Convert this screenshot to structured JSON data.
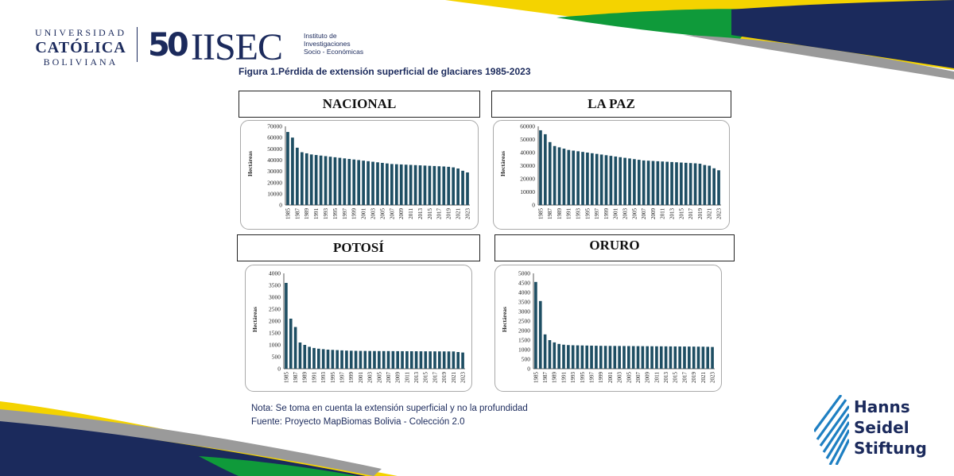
{
  "logos": {
    "ucb": {
      "line1": "UNIVERSIDAD",
      "line2": "CATÓLICA",
      "line3": "BOLIVIANA"
    },
    "usec": {
      "number": "50",
      "wordmark": "IISEC",
      "subtitle": [
        "Instituto de",
        "Investigaciones",
        "Socio - Económicas"
      ]
    },
    "hss": {
      "lines": [
        "Hanns",
        "Seidel",
        "Stiftung"
      ],
      "icon": "stripes-icon"
    }
  },
  "colors": {
    "navy": "#1b2a5c",
    "yellow": "#f4d300",
    "green": "#0f9a3a",
    "gray": "#9a9a9a",
    "bar": "#1e4e63"
  },
  "figure_title": "Figura 1.Pérdida de extensión superficial de glaciares 1985-2023",
  "notes": {
    "nota": "Nota: Se toma en cuenta la extensión superficial y no la profundidad",
    "fuente": "Fuente:  Proyecto MapBiomas Bolivia - Colección 2.0"
  },
  "chart_data": [
    {
      "type": "bar",
      "title": "NACIONAL",
      "ylabel": "Hectáreas",
      "ylim": [
        0,
        70000
      ],
      "yticks": [
        "0",
        "10000",
        "20000",
        "30000",
        "40000",
        "50000",
        "60000",
        "70000"
      ],
      "xticks": [
        "1985",
        "1987",
        "1989",
        "1991",
        "1993",
        "1995",
        "1997",
        "1999",
        "2001",
        "2003",
        "2005",
        "2007",
        "2009",
        "2011",
        "2013",
        "2015",
        "2017",
        "2019",
        "2021",
        "2023"
      ],
      "x": [
        1985,
        1986,
        1987,
        1988,
        1989,
        1990,
        1991,
        1992,
        1993,
        1994,
        1995,
        1996,
        1997,
        1998,
        1999,
        2000,
        2001,
        2002,
        2003,
        2004,
        2005,
        2006,
        2007,
        2008,
        2009,
        2010,
        2011,
        2012,
        2013,
        2014,
        2015,
        2016,
        2017,
        2018,
        2019,
        2020,
        2021,
        2022,
        2023
      ],
      "values": [
        65000,
        60000,
        51000,
        47000,
        46000,
        45000,
        44500,
        44000,
        43500,
        43000,
        42500,
        42000,
        41500,
        41000,
        40500,
        40000,
        39500,
        39000,
        38500,
        38000,
        37500,
        37000,
        36500,
        36300,
        36100,
        35900,
        35700,
        35500,
        35300,
        35100,
        34900,
        34700,
        34500,
        34300,
        34000,
        33500,
        32500,
        30500,
        29000
      ]
    },
    {
      "type": "bar",
      "title": "LA PAZ",
      "ylabel": "Hectáreas",
      "ylim": [
        0,
        60000
      ],
      "yticks": [
        "0",
        "10000",
        "20000",
        "30000",
        "40000",
        "50000",
        "60000"
      ],
      "xticks": [
        "1985",
        "1987",
        "1989",
        "1991",
        "1993",
        "1995",
        "1997",
        "1999",
        "2001",
        "2003",
        "2005",
        "2007",
        "2009",
        "2011",
        "2013",
        "2015",
        "2017",
        "2019",
        "2021",
        "2023"
      ],
      "x": [
        1985,
        1986,
        1987,
        1988,
        1989,
        1990,
        1991,
        1992,
        1993,
        1994,
        1995,
        1996,
        1997,
        1998,
        1999,
        2000,
        2001,
        2002,
        2003,
        2004,
        2005,
        2006,
        2007,
        2008,
        2009,
        2010,
        2011,
        2012,
        2013,
        2014,
        2015,
        2016,
        2017,
        2018,
        2019,
        2020,
        2021,
        2022,
        2023
      ],
      "values": [
        57000,
        54000,
        48000,
        45000,
        44000,
        43000,
        42000,
        41500,
        41000,
        40500,
        40000,
        39500,
        39000,
        38500,
        38000,
        37500,
        37000,
        36500,
        36000,
        35500,
        35000,
        34500,
        34000,
        33800,
        33600,
        33400,
        33200,
        33000,
        32800,
        32600,
        32400,
        32200,
        32000,
        31800,
        31500,
        30500,
        30000,
        28000,
        26500
      ]
    },
    {
      "type": "bar",
      "title": "POTOSÍ",
      "ylabel": "Hectáreas",
      "ylim": [
        0,
        4000
      ],
      "yticks": [
        "0",
        "500",
        "1000",
        "1500",
        "2000",
        "2500",
        "3000",
        "3500",
        "4000"
      ],
      "xticks": [
        "1985",
        "1987",
        "1989",
        "1991",
        "1993",
        "1995",
        "1997",
        "1999",
        "2001",
        "2003",
        "2005",
        "2007",
        "2009",
        "2011",
        "2013",
        "2015",
        "2017",
        "2019",
        "2021",
        "2023"
      ],
      "x": [
        1985,
        1986,
        1987,
        1988,
        1989,
        1990,
        1991,
        1992,
        1993,
        1994,
        1995,
        1996,
        1997,
        1998,
        1999,
        2000,
        2001,
        2002,
        2003,
        2004,
        2005,
        2006,
        2007,
        2008,
        2009,
        2010,
        2011,
        2012,
        2013,
        2014,
        2015,
        2016,
        2017,
        2018,
        2019,
        2020,
        2021,
        2022,
        2023
      ],
      "values": [
        3600,
        2100,
        1750,
        1100,
        1000,
        920,
        870,
        840,
        820,
        800,
        790,
        780,
        770,
        760,
        755,
        750,
        748,
        746,
        744,
        742,
        740,
        740,
        740,
        738,
        736,
        735,
        734,
        733,
        732,
        731,
        730,
        729,
        728,
        727,
        726,
        725,
        724,
        700,
        680
      ]
    },
    {
      "type": "bar",
      "title": "ORURO",
      "ylabel": "Hectáreas",
      "ylim": [
        0,
        5000
      ],
      "yticks": [
        "0",
        "500",
        "1000",
        "1500",
        "2000",
        "2500",
        "3000",
        "3500",
        "4000",
        "4500",
        "5000"
      ],
      "xticks": [
        "1985",
        "1987",
        "1989",
        "1991",
        "1993",
        "1995",
        "1997",
        "1999",
        "2001",
        "2003",
        "2005",
        "2007",
        "2009",
        "2011",
        "2013",
        "2015",
        "2017",
        "2019",
        "2021",
        "2023"
      ],
      "x": [
        1985,
        1986,
        1987,
        1988,
        1989,
        1990,
        1991,
        1992,
        1993,
        1994,
        1995,
        1996,
        1997,
        1998,
        1999,
        2000,
        2001,
        2002,
        2003,
        2004,
        2005,
        2006,
        2007,
        2008,
        2009,
        2010,
        2011,
        2012,
        2013,
        2014,
        2015,
        2016,
        2017,
        2018,
        2019,
        2020,
        2021,
        2022,
        2023
      ],
      "values": [
        4550,
        3550,
        1800,
        1500,
        1380,
        1300,
        1260,
        1240,
        1230,
        1225,
        1220,
        1215,
        1210,
        1205,
        1200,
        1198,
        1196,
        1194,
        1192,
        1190,
        1188,
        1186,
        1184,
        1182,
        1180,
        1178,
        1176,
        1174,
        1172,
        1170,
        1168,
        1166,
        1164,
        1162,
        1160,
        1158,
        1156,
        1150,
        1140
      ]
    }
  ]
}
